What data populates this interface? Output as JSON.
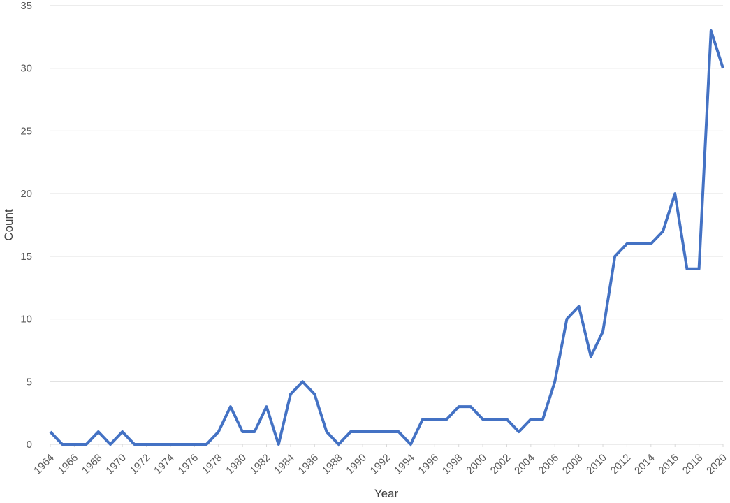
{
  "chart_data": {
    "type": "line",
    "x_label": "Year",
    "y_label": "Count",
    "x": [
      1964,
      1965,
      1966,
      1967,
      1968,
      1969,
      1970,
      1971,
      1972,
      1973,
      1974,
      1975,
      1976,
      1977,
      1978,
      1979,
      1980,
      1981,
      1982,
      1983,
      1984,
      1985,
      1986,
      1987,
      1988,
      1989,
      1990,
      1991,
      1992,
      1993,
      1994,
      1995,
      1996,
      1997,
      1998,
      1999,
      2000,
      2001,
      2002,
      2003,
      2004,
      2005,
      2006,
      2007,
      2008,
      2009,
      2010,
      2011,
      2012,
      2013,
      2014,
      2015,
      2016,
      2017,
      2018,
      2019,
      2020
    ],
    "values": [
      1,
      0,
      0,
      0,
      1,
      0,
      1,
      0,
      0,
      0,
      0,
      0,
      0,
      0,
      1,
      3,
      1,
      1,
      3,
      0,
      4,
      5,
      4,
      1,
      0,
      1,
      1,
      1,
      1,
      1,
      0,
      2,
      2,
      2,
      3,
      3,
      2,
      2,
      2,
      1,
      2,
      2,
      5,
      10,
      11,
      7,
      9,
      15,
      16,
      16,
      16,
      17,
      20,
      14,
      14,
      33,
      30
    ],
    "color": "#4472c4",
    "xlim": [
      1964,
      2020
    ],
    "xticks": [
      1964,
      1966,
      1968,
      1970,
      1972,
      1974,
      1976,
      1978,
      1980,
      1982,
      1984,
      1986,
      1988,
      1990,
      1992,
      1994,
      1996,
      1998,
      2000,
      2002,
      2004,
      2006,
      2008,
      2010,
      2012,
      2014,
      2016,
      2018,
      2020
    ],
    "ylim": [
      0,
      35
    ],
    "yticks": [
      0,
      5,
      10,
      15,
      20,
      25,
      30,
      35
    ],
    "grid": true
  }
}
